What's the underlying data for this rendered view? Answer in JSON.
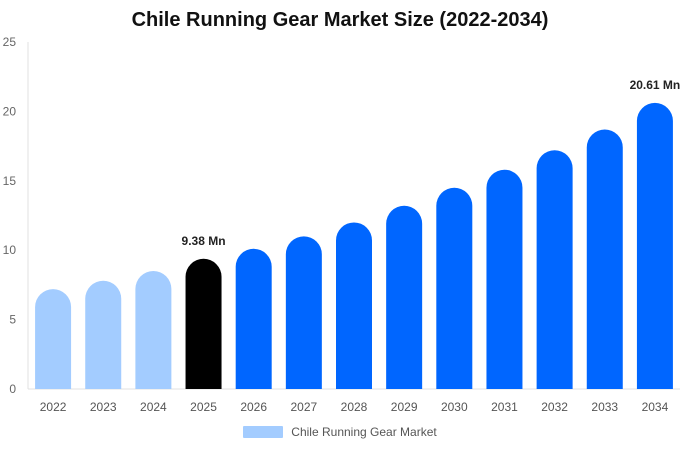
{
  "chart_data": {
    "type": "bar",
    "title": "Chile Running Gear Market Size (2022-2034)",
    "categories": [
      "2022",
      "2023",
      "2024",
      "2025",
      "2026",
      "2027",
      "2028",
      "2029",
      "2030",
      "2031",
      "2032",
      "2033",
      "2034"
    ],
    "series": [
      {
        "name": "Chile Running Gear Market",
        "values": [
          7.2,
          7.8,
          8.5,
          9.38,
          10.1,
          11.0,
          12.0,
          13.2,
          14.5,
          15.8,
          17.2,
          18.7,
          20.61
        ]
      }
    ],
    "ylim": [
      0,
      25
    ],
    "yticks": [
      "0",
      "5",
      "10",
      "15",
      "20",
      "25"
    ],
    "data_labels": [
      {
        "category": "2025",
        "text": "9.38 Mn"
      },
      {
        "category": "2034",
        "text": "20.61 Mn"
      }
    ],
    "grid": false,
    "legend": "bottom",
    "colors": {
      "historical": "#a3ccff",
      "current": "#000000",
      "forecast": "#0066ff"
    },
    "bar_color_by_category": [
      "historical",
      "historical",
      "historical",
      "current",
      "forecast",
      "forecast",
      "forecast",
      "forecast",
      "forecast",
      "forecast",
      "forecast",
      "forecast",
      "forecast"
    ]
  }
}
